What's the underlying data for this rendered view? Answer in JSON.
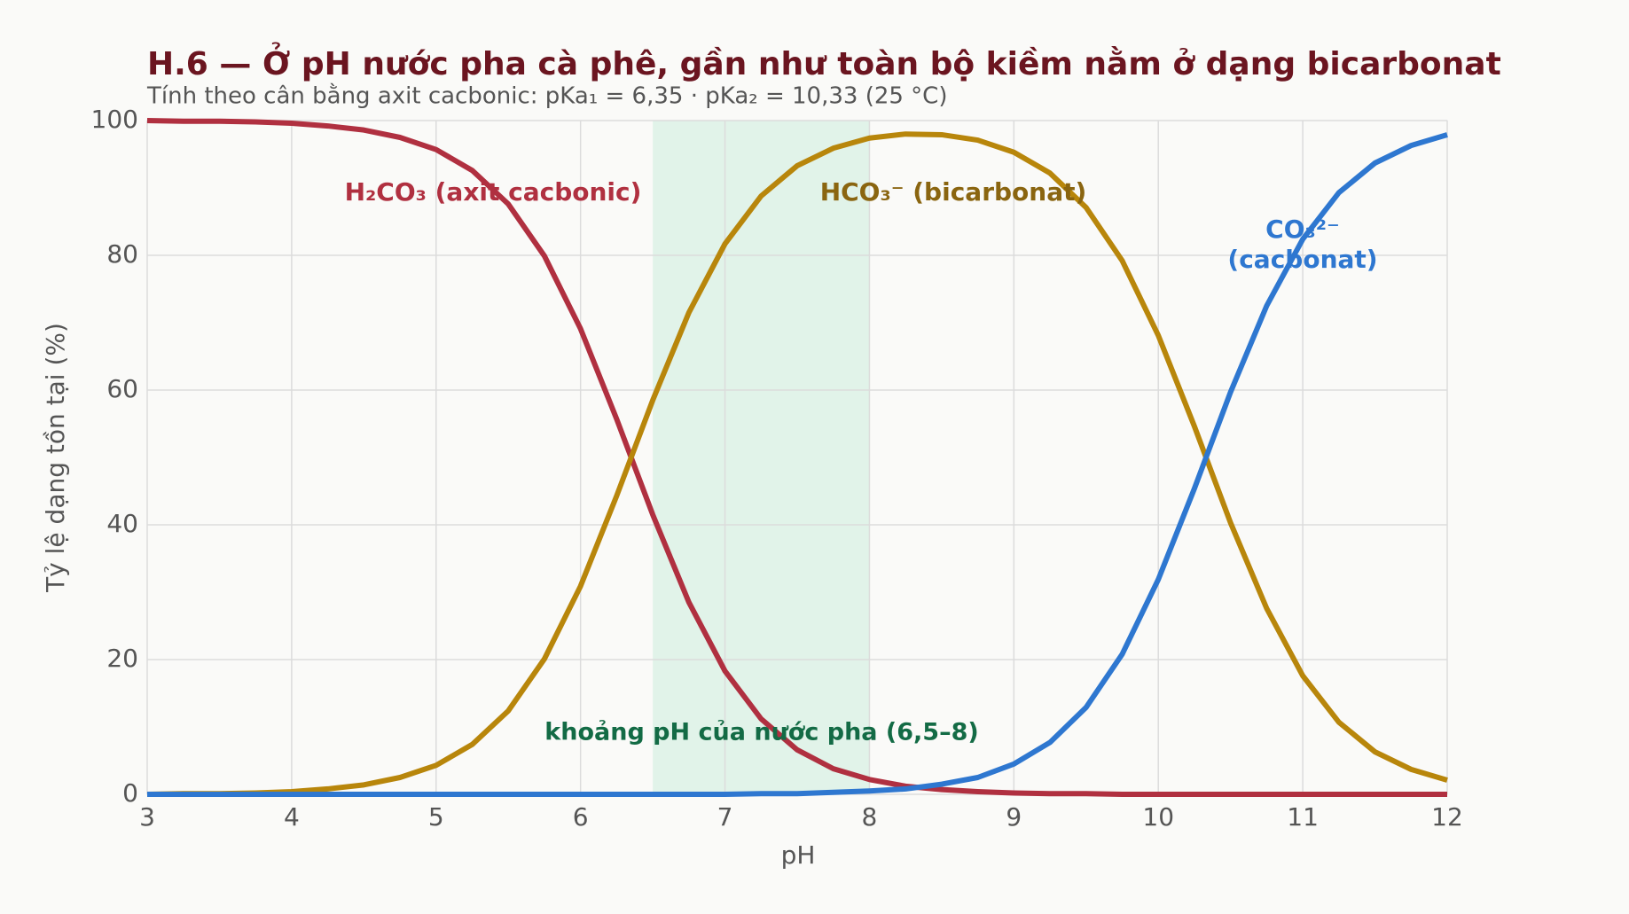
{
  "chart_data": {
    "type": "line",
    "title": "H.6 — Ở pH nước pha cà phê, gần như toàn bộ kiềm nằm ở dạng bicarbonat",
    "subtitle": "Tính theo cân bằng axit cacbonic: pKa₁ = 6,35 · pKa₂ = 10,33 (25 °C)",
    "x_label": "pH",
    "y_label": "Tỷ lệ dạng tồn tại (%)",
    "x": [
      3,
      3.25,
      3.5,
      3.75,
      4,
      4.25,
      4.5,
      4.75,
      5,
      5.25,
      5.5,
      5.75,
      6,
      6.25,
      6.5,
      6.75,
      7,
      7.25,
      7.5,
      7.75,
      8,
      8.25,
      8.5,
      8.75,
      9,
      9.25,
      9.5,
      9.75,
      10,
      10.25,
      10.5,
      10.75,
      11,
      11.25,
      11.5,
      11.75,
      12
    ],
    "series": [
      {
        "color": "#b03040",
        "values": [
          100.0,
          99.9,
          99.9,
          99.8,
          99.6,
          99.2,
          98.6,
          97.5,
          95.7,
          92.6,
          87.6,
          79.9,
          69.1,
          55.7,
          41.5,
          28.5,
          18.3,
          11.2,
          6.6,
          3.8,
          2.2,
          1.2,
          0.7,
          0.4,
          0.2,
          0.1,
          0.1,
          0.0,
          0.0,
          0.0,
          0.0,
          0.0,
          0.0,
          0.0,
          0.0,
          0.0,
          0.0
        ]
      },
      {
        "color": "#b8860b",
        "values": [
          0.0,
          0.1,
          0.1,
          0.2,
          0.4,
          0.8,
          1.4,
          2.5,
          4.3,
          7.4,
          12.4,
          20.1,
          30.9,
          44.3,
          58.5,
          71.5,
          81.7,
          88.8,
          93.3,
          95.9,
          97.4,
          98.0,
          97.9,
          97.1,
          95.3,
          92.2,
          87.1,
          79.2,
          68.1,
          54.6,
          40.3,
          27.6,
          17.6,
          10.7,
          6.3,
          3.7,
          2.1
        ]
      },
      {
        "color": "#2e77d0",
        "values": [
          0,
          0,
          0,
          0,
          0,
          0,
          0,
          0,
          0,
          0,
          0,
          0,
          0,
          0,
          0.0,
          0.0,
          0.0,
          0.1,
          0.1,
          0.3,
          0.5,
          0.8,
          1.5,
          2.5,
          4.5,
          7.7,
          12.9,
          20.8,
          31.9,
          45.4,
          59.7,
          72.5,
          82.4,
          89.3,
          93.7,
          96.3,
          97.9
        ]
      }
    ],
    "annotations": [
      {
        "lines": [
          "H₂CO₃ (axit cacbonic)"
        ],
        "color": "#b03040"
      },
      {
        "lines": [
          "HCO₃⁻ (bicarbonat)"
        ],
        "color": "#8a6510"
      },
      {
        "lines": [
          "CO₃²⁻",
          "(cacbonat)"
        ],
        "color": "#2e77d0"
      }
    ],
    "shaded_region": {
      "xlim": [
        6.5,
        8
      ],
      "label": "khoảng pH của nước pha (6,5–8)",
      "color": "#d5efe2",
      "label_color": "#136b45"
    },
    "xlim": [
      3,
      12
    ],
    "xticks": [
      3,
      4,
      5,
      6,
      7,
      8,
      9,
      10,
      11,
      12
    ],
    "ylim": [
      0,
      100
    ],
    "yticks": [
      0,
      20,
      40,
      60,
      80,
      100
    ],
    "grid": true
  }
}
